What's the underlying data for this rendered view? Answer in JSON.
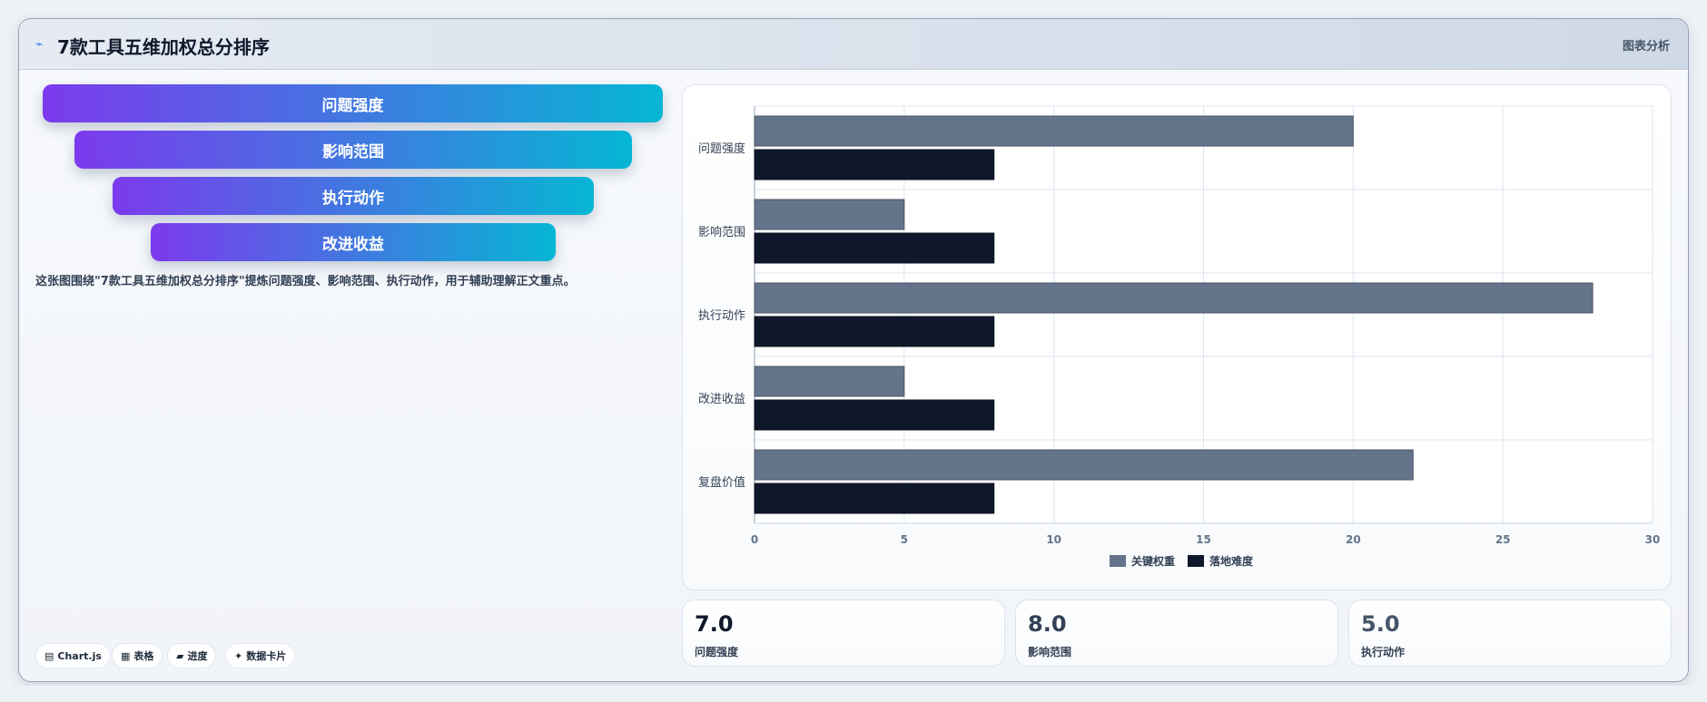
{
  "header": {
    "icon": "chart-line-icon",
    "title": "7款工具五维加权总分排序",
    "tag": "图表分析"
  },
  "funnel": {
    "items": [
      {
        "label": "问题强度"
      },
      {
        "label": "影响范围"
      },
      {
        "label": "执行动作"
      },
      {
        "label": "改进收益"
      }
    ],
    "gradient": [
      "#7c3aed",
      "#06b6d4"
    ]
  },
  "description": "这张图围绕\"7款工具五维加权总分排序\"提炼问题强度、影响范围、执行动作，用于辅助理解正文重点。",
  "pills": [
    {
      "icon": "chart-icon",
      "glyph": "▤",
      "label": "Chart.js"
    },
    {
      "icon": "table-icon",
      "glyph": "▦",
      "label": "表格"
    },
    {
      "icon": "progress-icon",
      "glyph": "▰",
      "label": "进度"
    },
    {
      "icon": "sparkle-icon",
      "glyph": "✦",
      "label": "数据卡片"
    }
  ],
  "chart_data": {
    "type": "bar",
    "orientation": "horizontal",
    "categories": [
      "问题强度",
      "影响范围",
      "执行动作",
      "改进收益",
      "复盘价值"
    ],
    "series": [
      {
        "name": "关键权重",
        "values": [
          20,
          5,
          28,
          5,
          22
        ],
        "color": "#64748b"
      },
      {
        "name": "落地难度",
        "values": [
          8,
          8,
          8,
          8,
          8
        ],
        "color": "#0f172a"
      }
    ],
    "xlim": [
      0,
      30
    ],
    "x_ticks": [
      0,
      5,
      10,
      15,
      20,
      25,
      30
    ],
    "grid": true,
    "legend_position": "bottom"
  },
  "stats": [
    {
      "value": "7.0",
      "label": "问题强度",
      "color": "#0f172a"
    },
    {
      "value": "8.0",
      "label": "影响范围",
      "color": "#334155"
    },
    {
      "value": "5.0",
      "label": "执行动作",
      "color": "#475569"
    }
  ]
}
